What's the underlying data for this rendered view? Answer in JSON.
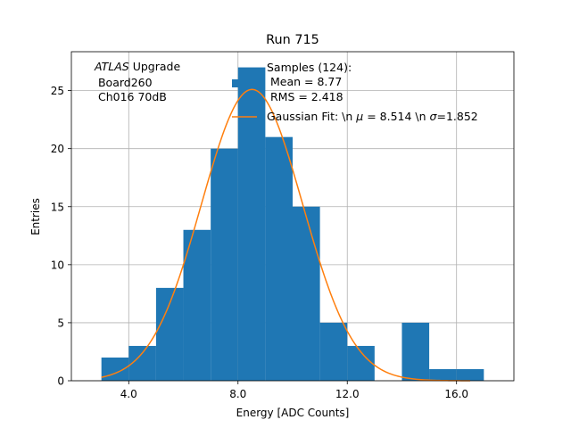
{
  "chart_data": {
    "type": "bar",
    "title": "Run 715",
    "xlabel": "Energy [ADC Counts]",
    "ylabel": "Entries",
    "xlim": [
      1.9,
      18.1
    ],
    "ylim": [
      0,
      28.35
    ],
    "xticks": [
      4.0,
      8.0,
      12.0,
      16.0
    ],
    "xtick_labels": [
      "4.0",
      "8.0",
      "12.0",
      "16.0"
    ],
    "yticks": [
      0,
      5,
      10,
      15,
      20,
      25
    ],
    "ytick_labels": [
      "0",
      "5",
      "10",
      "15",
      "20",
      "25"
    ],
    "grid": true,
    "histogram": {
      "name": "Samples",
      "color": "#1f77b4",
      "bin_edges": [
        3,
        4,
        5,
        6,
        7,
        8,
        9,
        10,
        11,
        12,
        13,
        14,
        15,
        16,
        17
      ],
      "counts": [
        2,
        3,
        8,
        13,
        20,
        27,
        21,
        15,
        5,
        3,
        0,
        5,
        1,
        1
      ]
    },
    "fit": {
      "name": "Gaussian Fit",
      "color": "#ff7f0e",
      "mu": 8.514,
      "sigma": 1.852,
      "amplitude": 25.1,
      "x_range": [
        3.0,
        16.5
      ]
    },
    "annotation": {
      "line1_italic": "ATLAS",
      "line1_rest": " Upgrade",
      "line2": " Board260",
      "line3": " Ch016 70dB"
    },
    "legend": {
      "position": "top-right",
      "samples_line1": "Samples (124):",
      "samples_line2": " Mean = 8.77",
      "samples_line3": " RMS = 2.418",
      "fit_label": "Gaussian Fit: \\n $\\mu$ = 8.514 \\n $\\sigma$=1.852",
      "fit_label_prefix": "Gaussian Fit: \\n ",
      "fit_label_mu_sym": "μ",
      "fit_label_mid": " = 8.514 \\n ",
      "fit_label_sigma_sym": "σ",
      "fit_label_end": "=1.852"
    }
  }
}
